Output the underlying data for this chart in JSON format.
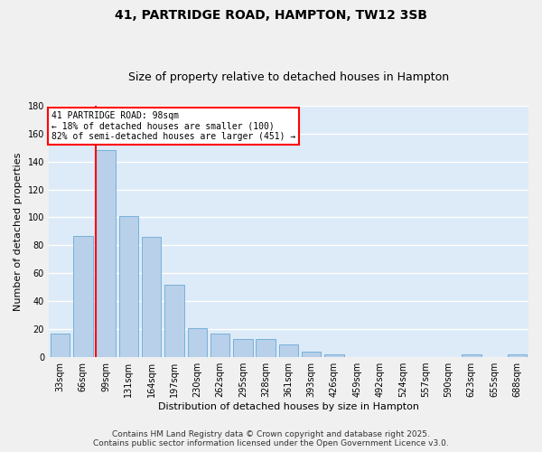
{
  "title": "41, PARTRIDGE ROAD, HAMPTON, TW12 3SB",
  "subtitle": "Size of property relative to detached houses in Hampton",
  "xlabel": "Distribution of detached houses by size in Hampton",
  "ylabel": "Number of detached properties",
  "categories": [
    "33sqm",
    "66sqm",
    "99sqm",
    "131sqm",
    "164sqm",
    "197sqm",
    "230sqm",
    "262sqm",
    "295sqm",
    "328sqm",
    "361sqm",
    "393sqm",
    "426sqm",
    "459sqm",
    "492sqm",
    "524sqm",
    "557sqm",
    "590sqm",
    "623sqm",
    "655sqm",
    "688sqm"
  ],
  "values": [
    17,
    87,
    148,
    101,
    86,
    52,
    21,
    17,
    13,
    13,
    9,
    4,
    2,
    0,
    0,
    0,
    0,
    0,
    2,
    0,
    2
  ],
  "bar_color": "#b8d0ea",
  "bar_edge_color": "#6aaad4",
  "red_line_index": 2,
  "red_line_label": "41 PARTRIDGE ROAD: 98sqm",
  "annotation_line1": "← 18% of detached houses are smaller (100)",
  "annotation_line2": "82% of semi-detached houses are larger (451) →",
  "ylim": [
    0,
    180
  ],
  "yticks": [
    0,
    20,
    40,
    60,
    80,
    100,
    120,
    140,
    160,
    180
  ],
  "background_color": "#ddeaf8",
  "grid_color": "#ffffff",
  "fig_background": "#f0f0f0",
  "footer_line1": "Contains HM Land Registry data © Crown copyright and database right 2025.",
  "footer_line2": "Contains public sector information licensed under the Open Government Licence v3.0.",
  "title_fontsize": 10,
  "subtitle_fontsize": 9,
  "axis_label_fontsize": 8,
  "tick_fontsize": 7,
  "footer_fontsize": 6.5,
  "annot_fontsize": 7
}
